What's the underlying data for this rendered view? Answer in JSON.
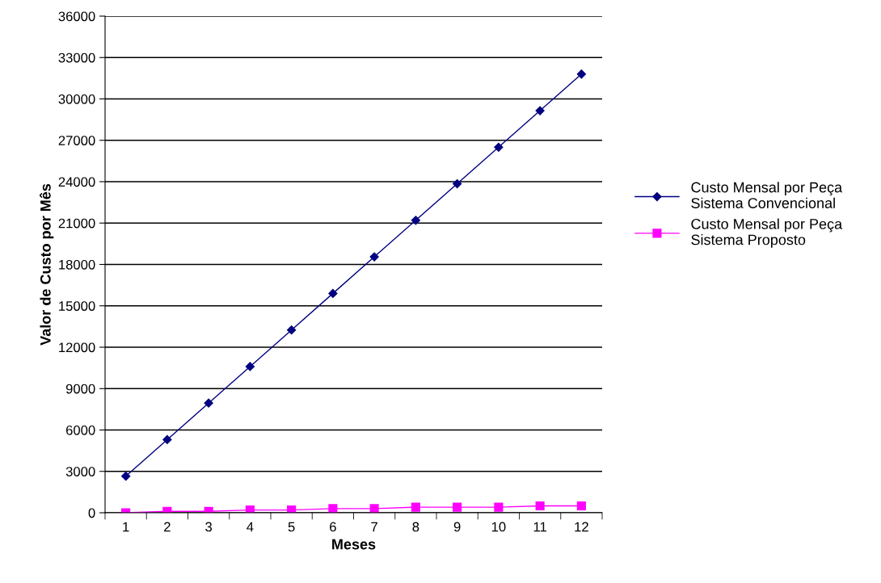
{
  "chart_data": {
    "type": "line",
    "xlabel": "Meses",
    "ylabel": "Valor de Custo por Mês",
    "categories": [
      "1",
      "2",
      "3",
      "4",
      "5",
      "6",
      "7",
      "8",
      "9",
      "10",
      "11",
      "12"
    ],
    "series": [
      {
        "name": "Custo Mensal por Peça\nSistema Convencional",
        "color": "#000080",
        "marker": "diamond",
        "values": [
          2650,
          5300,
          7950,
          10600,
          13250,
          15900,
          18550,
          21200,
          23850,
          26500,
          29150,
          31800
        ]
      },
      {
        "name": "Custo Mensal por Peça\nSistema Proposto",
        "color": "#ff00ff",
        "marker": "square",
        "values": [
          0,
          100,
          100,
          200,
          200,
          300,
          300,
          400,
          400,
          400,
          500,
          500
        ]
      }
    ],
    "ylim": [
      0,
      36000
    ],
    "yticks": [
      0,
      3000,
      6000,
      9000,
      12000,
      15000,
      18000,
      21000,
      24000,
      27000,
      30000,
      33000,
      36000
    ],
    "grid": "y",
    "legend": "right",
    "line_style": "solid"
  }
}
